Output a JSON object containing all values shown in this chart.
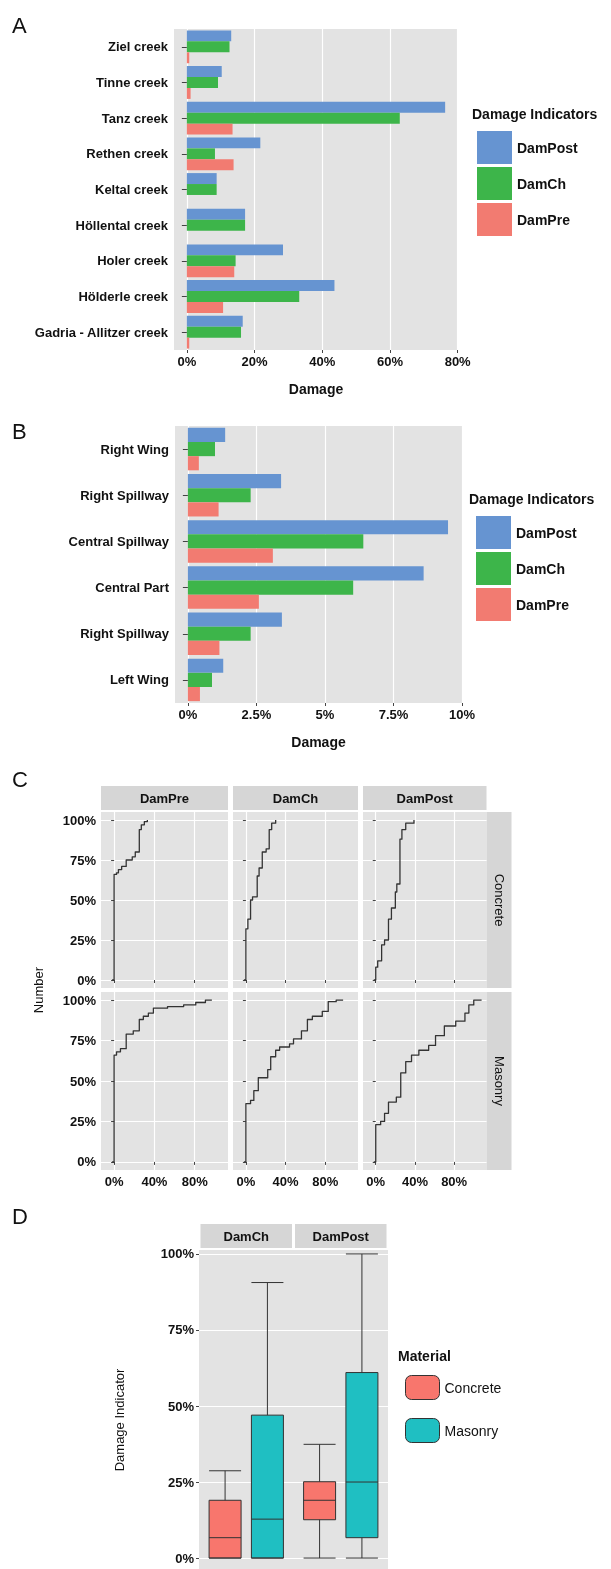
{
  "chart_data": [
    {
      "type": "bar",
      "orientation": "horizontal",
      "annotations": [
        "A"
      ],
      "xlabel": "Damage",
      "legend_title": "Damage Indicators",
      "legend": "right",
      "grid": "x",
      "categories": [
        "Ziel creek",
        "Tinne creek",
        "Tanz creek",
        "Rethen creek",
        "Keltal creek",
        "Höllental creek",
        "Holer creek",
        "Hölderle creek",
        "Gadria - Allitzer creek"
      ],
      "series": [
        {
          "name": "DamPost",
          "color": "#6694d1",
          "values": [
            13.1,
            10.3,
            76.3,
            21.7,
            8.8,
            17.2,
            28.4,
            43.6,
            16.5
          ]
        },
        {
          "name": "DamCh",
          "color": "#3db54a",
          "values": [
            12.6,
            9.2,
            62.9,
            8.3,
            8.8,
            17.2,
            14.4,
            33.2,
            16.0
          ]
        },
        {
          "name": "DamPre",
          "color": "#f27b71",
          "values": [
            0.7,
            1.1,
            13.5,
            13.8,
            0,
            0,
            14.0,
            10.7,
            0.7
          ]
        }
      ],
      "xlim": [
        -3.8,
        80.1
      ],
      "xticks": [
        {
          "value": 0,
          "label": "0%"
        },
        {
          "value": 20,
          "label": "20%"
        },
        {
          "value": 40,
          "label": "40%"
        },
        {
          "value": 60,
          "label": "60%"
        },
        {
          "value": 80,
          "label": "80%"
        }
      ]
    },
    {
      "type": "bar",
      "orientation": "horizontal",
      "annotations": [
        "B"
      ],
      "xlabel": "Damage",
      "legend_title": "Damage Indicators",
      "legend": "right",
      "grid": "x",
      "categories": [
        "Right Wing",
        "Right Spillway",
        "Central Spillway",
        "Central Part",
        "Right Spillway",
        "Left Wing"
      ],
      "series": [
        {
          "name": "DamPost",
          "color": "#6694d1",
          "values": [
            1.36,
            3.4,
            9.49,
            8.6,
            3.43,
            1.29
          ]
        },
        {
          "name": "DamCh",
          "color": "#3db54a",
          "values": [
            0.99,
            2.29,
            6.4,
            6.03,
            2.29,
            0.88
          ]
        },
        {
          "name": "DamPre",
          "color": "#f27b71",
          "values": [
            0.4,
            1.12,
            3.1,
            2.59,
            1.15,
            0.44
          ]
        }
      ],
      "xlim": [
        -0.47,
        10
      ],
      "xticks": [
        {
          "value": 0,
          "label": "0%"
        },
        {
          "value": 2.5,
          "label": "2.5%"
        },
        {
          "value": 5,
          "label": "5%"
        },
        {
          "value": 7.5,
          "label": "7.5%"
        },
        {
          "value": 10,
          "label": "10%"
        }
      ]
    },
    {
      "type": "step",
      "title": "DamPre",
      "annotations": [
        "C"
      ],
      "ylabel": "Number",
      "grid": true,
      "tick_labels": "y",
      "series": [
        {
          "color": "#333333",
          "x": [
            -2,
            0,
            2.4,
            4.3,
            7.5,
            12,
            18,
            21,
            25,
            27,
            30,
            33
          ],
          "values": [
            0,
            66,
            67,
            69,
            71,
            75,
            77,
            80,
            94,
            97,
            99,
            100
          ]
        }
      ],
      "xlim": [
        -13,
        113
      ],
      "xticks": [
        {
          "value": 0,
          "label": null
        },
        {
          "value": 40,
          "label": null
        },
        {
          "value": 80,
          "label": null
        }
      ],
      "ylim": [
        -5,
        105
      ],
      "yticks": [
        {
          "value": 0,
          "label": "0%"
        },
        {
          "value": 25,
          "label": "25%"
        },
        {
          "value": 50,
          "label": "50%"
        },
        {
          "value": 75,
          "label": "75%"
        },
        {
          "value": 100,
          "label": "100%"
        }
      ]
    },
    {
      "type": "step",
      "title": "DamCh",
      "grid": true,
      "tick_labels": false,
      "series": [
        {
          "color": "#333333",
          "x": [
            -2,
            0,
            2,
            4.7,
            6.7,
            11.4,
            13.3,
            16.5,
            20.4,
            23.5,
            26,
            30
          ],
          "values": [
            0,
            32,
            38,
            50,
            52,
            65,
            70,
            80,
            82,
            94,
            98,
            100
          ]
        }
      ],
      "xlim": [
        -13,
        113
      ],
      "xticks": [
        {
          "value": 0,
          "label": null
        },
        {
          "value": 40,
          "label": null
        },
        {
          "value": 80,
          "label": null
        }
      ],
      "ylim": [
        -5,
        105
      ],
      "yticks": [
        {
          "value": 0,
          "label": null
        },
        {
          "value": 25,
          "label": null
        },
        {
          "value": 50,
          "label": null
        },
        {
          "value": 75,
          "label": null
        },
        {
          "value": 100,
          "label": null
        }
      ]
    },
    {
      "type": "step",
      "title": "DamPost",
      "y2label": "Concrete",
      "grid": true,
      "tick_labels": false,
      "series": [
        {
          "color": "#333333",
          "x": [
            -2,
            0,
            2,
            6,
            9,
            13,
            16,
            20,
            21.5,
            24.7,
            26.7,
            30.6,
            39
          ],
          "values": [
            0,
            8,
            12,
            22,
            25,
            38,
            45,
            55,
            60,
            88,
            94,
            98,
            100
          ]
        }
      ],
      "xlim": [
        -13,
        113
      ],
      "xticks": [
        {
          "value": 0,
          "label": null
        },
        {
          "value": 40,
          "label": null
        },
        {
          "value": 80,
          "label": null
        }
      ],
      "ylim": [
        -5,
        105
      ],
      "yticks": [
        {
          "value": 0,
          "label": null
        },
        {
          "value": 25,
          "label": null
        },
        {
          "value": 50,
          "label": null
        },
        {
          "value": 75,
          "label": null
        },
        {
          "value": 100,
          "label": null
        }
      ]
    },
    {
      "type": "step",
      "grid": true,
      "series": [
        {
          "color": "#333333",
          "x": [
            -2,
            0,
            2.4,
            6.3,
            12,
            19,
            25,
            29,
            34,
            39,
            53,
            69,
            81,
            90.6,
            97
          ],
          "values": [
            0,
            66,
            68,
            70,
            79,
            81,
            88,
            90,
            92,
            95,
            96,
            97,
            98.5,
            100,
            100
          ]
        }
      ],
      "xlim": [
        -13,
        113
      ],
      "xticks": [
        {
          "value": 0,
          "label": "0%"
        },
        {
          "value": 40,
          "label": "40%"
        },
        {
          "value": 80,
          "label": "80%"
        }
      ],
      "ylim": [
        -5,
        105
      ],
      "yticks": [
        {
          "value": 0,
          "label": "0%"
        },
        {
          "value": 25,
          "label": "25%"
        },
        {
          "value": 50,
          "label": "50%"
        },
        {
          "value": 75,
          "label": "75%"
        },
        {
          "value": 100,
          "label": "100%"
        }
      ]
    },
    {
      "type": "step",
      "grid": true,
      "tick_labels": "x",
      "series": [
        {
          "color": "#333333",
          "x": [
            -2,
            0,
            4.7,
            8,
            12.5,
            22,
            25,
            30,
            34,
            44,
            48,
            56,
            62,
            67,
            77,
            83,
            91,
            98
          ],
          "values": [
            0,
            36,
            38,
            44,
            52,
            57,
            65,
            69,
            71,
            73,
            76,
            81,
            88,
            90,
            93,
            99,
            100,
            100
          ]
        }
      ],
      "xlim": [
        -13,
        113
      ],
      "xticks": [
        {
          "value": 0,
          "label": "0%"
        },
        {
          "value": 40,
          "label": "40%"
        },
        {
          "value": 80,
          "label": "80%"
        }
      ],
      "ylim": [
        -5,
        105
      ],
      "yticks": [
        {
          "value": 0,
          "label": null
        },
        {
          "value": 25,
          "label": null
        },
        {
          "value": 50,
          "label": null
        },
        {
          "value": 75,
          "label": null
        },
        {
          "value": 100,
          "label": null
        }
      ]
    },
    {
      "type": "step",
      "y2label": "Masonry",
      "grid": true,
      "tick_labels": "x",
      "series": [
        {
          "color": "#333333",
          "x": [
            -2,
            0,
            5,
            9,
            13,
            21,
            25.5,
            30.6,
            36.5,
            44,
            54,
            61,
            70,
            81.6,
            91,
            95,
            100,
            108
          ],
          "values": [
            0,
            23,
            25,
            30,
            37,
            40,
            55,
            62,
            66,
            69,
            72,
            78,
            84,
            87,
            92,
            97,
            100,
            100
          ]
        }
      ],
      "xlim": [
        -13,
        113
      ],
      "xticks": [
        {
          "value": 0,
          "label": "0%"
        },
        {
          "value": 40,
          "label": "40%"
        },
        {
          "value": 80,
          "label": "80%"
        }
      ],
      "ylim": [
        -5,
        105
      ],
      "yticks": [
        {
          "value": 0,
          "label": null
        },
        {
          "value": 25,
          "label": null
        },
        {
          "value": 50,
          "label": null
        },
        {
          "value": 75,
          "label": null
        },
        {
          "value": 100,
          "label": null
        }
      ]
    },
    {
      "type": "box",
      "annotations": [
        "D"
      ],
      "ylabel": "Damage Indicator",
      "grid": "y",
      "legend": "right",
      "legend_title": "Material",
      "categories": [
        "DamCh",
        "DamPost"
      ],
      "series": [
        {
          "name": "Concrete",
          "color": "#f8766d",
          "boxes": [
            {
              "low": 0,
              "q1": 0,
              "median": 6.7,
              "q3": 19,
              "high": 28.7
            },
            {
              "low": 0,
              "q1": 12.6,
              "median": 19,
              "q3": 25.1,
              "high": 37.4
            }
          ]
        },
        {
          "name": "Masonry",
          "color": "#1fbfc2",
          "boxes": [
            {
              "low": 0,
              "q1": 0,
              "median": 12.8,
              "q3": 47,
              "high": 90.6
            },
            {
              "low": 0,
              "q1": 6.7,
              "median": 25,
              "q3": 61,
              "high": 100
            }
          ]
        }
      ],
      "ylim": [
        -3.6,
        101.3
      ],
      "yticks": [
        {
          "value": 0,
          "label": "0%"
        },
        {
          "value": 25,
          "label": "25%"
        },
        {
          "value": 50,
          "label": "50%"
        },
        {
          "value": 75,
          "label": "75%"
        },
        {
          "value": 100,
          "label": "100%"
        }
      ]
    }
  ]
}
